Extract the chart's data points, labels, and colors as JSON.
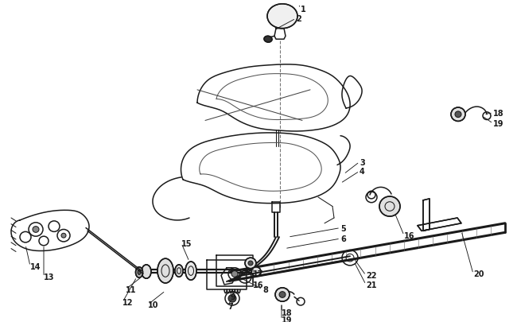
{
  "bg_color": "#ffffff",
  "fig_width": 6.5,
  "fig_height": 4.06,
  "dpi": 100,
  "line_color": "#1a1a1a",
  "label_fontsize": 7.0,
  "label_fontweight": "bold"
}
